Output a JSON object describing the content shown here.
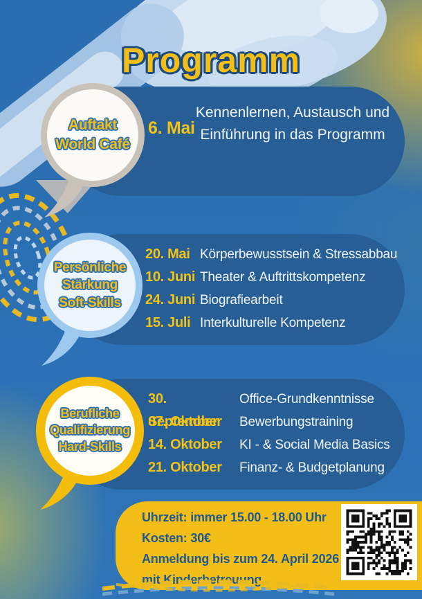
{
  "page": {
    "title": "Programm"
  },
  "sections": [
    {
      "id": "auftakt",
      "bubble_lines": [
        "Auftakt",
        "World Café"
      ],
      "events": [
        {
          "date": "6. Mai",
          "topic": "Kennenlernen, Austausch und Einführung in das Programm"
        }
      ]
    },
    {
      "id": "soft-skills",
      "bubble_lines": [
        "Persönliche",
        "Stärkung",
        "Soft-Skills"
      ],
      "events": [
        {
          "date": "20. Mai",
          "topic": "Körperbewusstsein & Stressabbau"
        },
        {
          "date": "10. Juni",
          "topic": "Theater & Auftrittskompetenz"
        },
        {
          "date": "24. Juni",
          "topic": "Biografiearbeit"
        },
        {
          "date": "15. Juli",
          "topic": "Interkulturelle Kompetenz"
        }
      ]
    },
    {
      "id": "hard-skills",
      "bubble_lines": [
        "Berufliche",
        "Qualifizierung",
        "Hard-Skills"
      ],
      "events": [
        {
          "date": "30. September",
          "topic": "Office-Grundkenntnisse"
        },
        {
          "date": "07. Oktober",
          "topic": "Bewerbungstraining"
        },
        {
          "date": "14. Oktober",
          "topic": "KI - & Social Media Basics"
        },
        {
          "date": "21. Oktober",
          "topic": "Finanz- & Budgetplanung"
        }
      ]
    }
  ],
  "footer": {
    "lines": [
      "Uhrzeit: immer 15.00 - 18.00 Uhr",
      "Kosten: 30€",
      "Anmeldung bis zum 24. April 2026",
      "mit Kinderbetreuung"
    ]
  },
  "colors": {
    "yellow": "#F4BE18",
    "date-yellow": "#F2C215",
    "card": "#275E96",
    "bg": "#2C71B5",
    "navy": "#1D4B7C",
    "outline-blue": "#3273B6",
    "footer-ink": "#1F5A8E",
    "white-text": "#EFF4F9",
    "ring1": "#C9C2B8",
    "inner1": "#FBFAF7",
    "ring2": "#9DC9EF",
    "inner2": "#EDF5FC",
    "ring3": "#F4BD0C",
    "inner3": "#FDFCF5"
  }
}
